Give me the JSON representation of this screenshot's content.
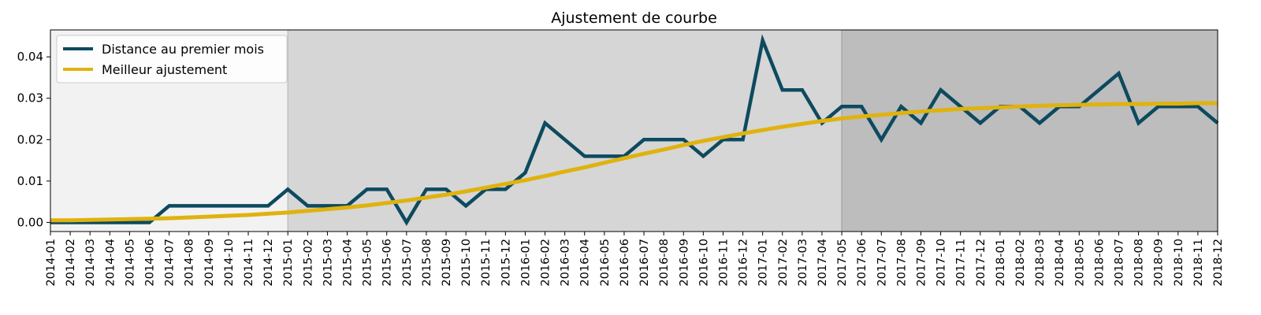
{
  "chart_data": {
    "type": "line",
    "title": "Ajustement de courbe",
    "xlabel": "",
    "ylabel": "",
    "ylim": [
      -0.0022,
      0.0465
    ],
    "yticks": [
      0.0,
      0.01,
      0.02,
      0.03,
      0.04
    ],
    "ytick_labels": [
      "0.00",
      "0.01",
      "0.02",
      "0.03",
      "0.04"
    ],
    "grid": false,
    "legend_position": "top-left",
    "x": [
      "2014-01",
      "2014-02",
      "2014-03",
      "2014-04",
      "2014-05",
      "2014-06",
      "2014-07",
      "2014-08",
      "2014-09",
      "2014-10",
      "2014-11",
      "2014-12",
      "2015-01",
      "2015-02",
      "2015-03",
      "2015-04",
      "2015-05",
      "2015-06",
      "2015-07",
      "2015-08",
      "2015-09",
      "2015-10",
      "2015-11",
      "2015-12",
      "2016-01",
      "2016-02",
      "2016-03",
      "2016-04",
      "2016-05",
      "2016-06",
      "2016-07",
      "2016-08",
      "2016-09",
      "2016-10",
      "2016-11",
      "2016-12",
      "2017-01",
      "2017-02",
      "2017-03",
      "2017-04",
      "2017-05",
      "2017-06",
      "2017-07",
      "2017-08",
      "2017-09",
      "2017-10",
      "2017-11",
      "2017-12",
      "2018-01",
      "2018-02",
      "2018-03",
      "2018-04",
      "2018-05",
      "2018-06",
      "2018-07",
      "2018-08",
      "2018-09",
      "2018-10",
      "2018-11",
      "2018-12"
    ],
    "periods": [
      {
        "from": "2014-01",
        "to": "2015-01",
        "color": "#f2f2f2"
      },
      {
        "from": "2015-01",
        "to": "2017-05",
        "color": "#d6d6d6"
      },
      {
        "from": "2017-05",
        "to": "2018-12",
        "color": "#bdbdbd"
      }
    ],
    "series": [
      {
        "name": "Distance au premier mois",
        "color": "#0d4a5f",
        "values": [
          0.0,
          0.0,
          0.0,
          0.0,
          0.0,
          0.0,
          0.004,
          0.004,
          0.004,
          0.004,
          0.004,
          0.004,
          0.008,
          0.004,
          0.004,
          0.004,
          0.008,
          0.008,
          0.0,
          0.008,
          0.008,
          0.004,
          0.008,
          0.008,
          0.012,
          0.024,
          0.02,
          0.016,
          0.016,
          0.016,
          0.02,
          0.02,
          0.02,
          0.016,
          0.02,
          0.02,
          0.044,
          0.032,
          0.032,
          0.024,
          0.028,
          0.028,
          0.02,
          0.028,
          0.024,
          0.032,
          0.028,
          0.024,
          0.028,
          0.028,
          0.024,
          0.028,
          0.028,
          0.032,
          0.036,
          0.024,
          0.028,
          0.028,
          0.028,
          0.024
        ]
      },
      {
        "name": "Meilleur ajustement",
        "color": "#e0b20e",
        "values": [
          0.0005,
          0.0005,
          0.0006,
          0.0007,
          0.0008,
          0.0009,
          0.001,
          0.0012,
          0.0014,
          0.0016,
          0.0018,
          0.0021,
          0.0024,
          0.0028,
          0.0032,
          0.0036,
          0.0041,
          0.0047,
          0.0053,
          0.006,
          0.0067,
          0.0075,
          0.0084,
          0.0093,
          0.0102,
          0.0112,
          0.0123,
          0.0133,
          0.0144,
          0.0155,
          0.0166,
          0.0176,
          0.0187,
          0.0197,
          0.0206,
          0.0215,
          0.0223,
          0.0231,
          0.0238,
          0.0245,
          0.0251,
          0.0256,
          0.026,
          0.0264,
          0.0268,
          0.0271,
          0.0274,
          0.0276,
          0.0278,
          0.028,
          0.0282,
          0.0283,
          0.0284,
          0.0285,
          0.0286,
          0.0286,
          0.0287,
          0.0287,
          0.0288,
          0.0288
        ]
      }
    ]
  }
}
